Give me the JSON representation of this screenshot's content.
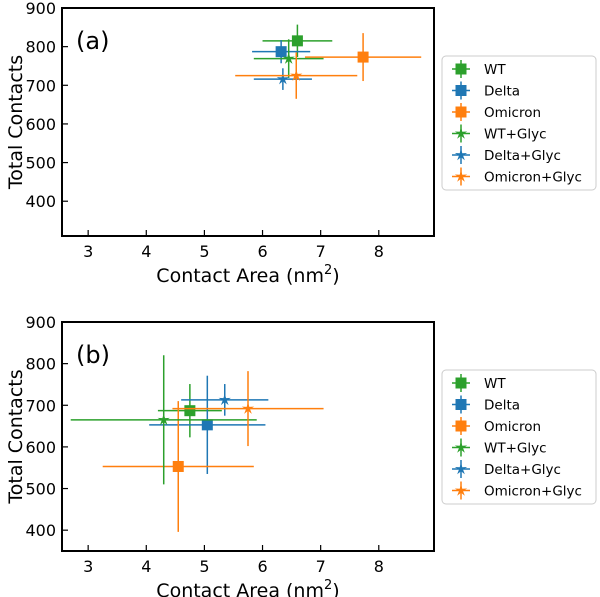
{
  "chart_data": [
    {
      "panel_label": "(a)",
      "type": "scatter",
      "xlabel": "Contact Area (nm",
      "xlabel_superscript": "2",
      "xlabel_suffix": ")",
      "ylabel": "Total Contacts",
      "xlim": [
        2.55,
        8.95
      ],
      "ylim": [
        310,
        900
      ],
      "xticks": [
        3,
        4,
        5,
        6,
        7,
        8
      ],
      "yticks": [
        400,
        500,
        600,
        700,
        800,
        900
      ],
      "legend": "right",
      "series": [
        {
          "name": "WT",
          "marker": "square",
          "color": "#2ca02c",
          "x": 6.6,
          "y": 815,
          "xerr": 0.6,
          "yerr": 42
        },
        {
          "name": "Delta",
          "marker": "square",
          "color": "#1f77b4",
          "x": 6.32,
          "y": 787,
          "xerr": 0.5,
          "yerr": 30
        },
        {
          "name": "Omicron",
          "marker": "square",
          "color": "#ff7f0e",
          "x": 7.73,
          "y": 773,
          "xerr": 1.0,
          "yerr": 62
        },
        {
          "name": "WT+Glyc",
          "marker": "star",
          "color": "#2ca02c",
          "x": 6.45,
          "y": 769,
          "xerr": 0.6,
          "yerr": 50
        },
        {
          "name": "Delta+Glyc",
          "marker": "star",
          "color": "#1f77b4",
          "x": 6.35,
          "y": 716,
          "xerr": 0.5,
          "yerr": 28
        },
        {
          "name": "Omicron+Glyc",
          "marker": "star",
          "color": "#ff7f0e",
          "x": 6.58,
          "y": 725,
          "xerr": 1.05,
          "yerr": 60
        }
      ]
    },
    {
      "panel_label": "(b)",
      "type": "scatter",
      "xlabel": "Contact Area (nm",
      "xlabel_superscript": "2",
      "xlabel_suffix": ")",
      "ylabel": "Total Contacts",
      "xlim": [
        2.55,
        8.95
      ],
      "ylim": [
        350,
        900
      ],
      "xticks": [
        3,
        4,
        5,
        6,
        7,
        8
      ],
      "yticks": [
        400,
        500,
        600,
        700,
        800,
        900
      ],
      "legend": "right",
      "series": [
        {
          "name": "WT",
          "marker": "square",
          "color": "#2ca02c",
          "x": 4.75,
          "y": 687,
          "xerr": 0.55,
          "yerr": 64
        },
        {
          "name": "Delta",
          "marker": "square",
          "color": "#1f77b4",
          "x": 5.05,
          "y": 653,
          "xerr": 1.0,
          "yerr": 118
        },
        {
          "name": "Omicron",
          "marker": "square",
          "color": "#ff7f0e",
          "x": 4.55,
          "y": 553,
          "xerr": 1.3,
          "yerr": 157
        },
        {
          "name": "WT+Glyc",
          "marker": "star",
          "color": "#2ca02c",
          "x": 4.3,
          "y": 665,
          "xerr": 1.6,
          "yerr": 155
        },
        {
          "name": "Delta+Glyc",
          "marker": "star",
          "color": "#1f77b4",
          "x": 5.35,
          "y": 713,
          "xerr": 0.75,
          "yerr": 38
        },
        {
          "name": "Omicron+Glyc",
          "marker": "star",
          "color": "#ff7f0e",
          "x": 5.75,
          "y": 692,
          "xerr": 1.3,
          "yerr": 90
        }
      ]
    }
  ]
}
